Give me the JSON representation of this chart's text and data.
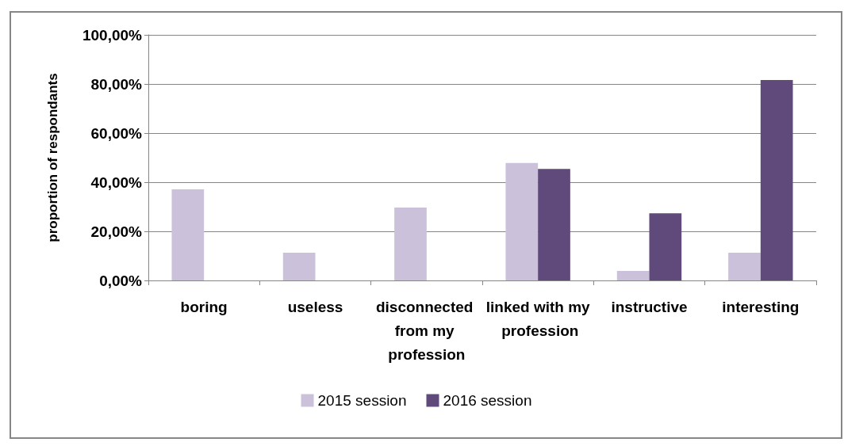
{
  "chart_data": {
    "type": "bar",
    "ylabel": "proportion of respondants",
    "categories": [
      "boring",
      "useless",
      "disconnected from my profession",
      "linked with my profession",
      "instructive",
      "interesting"
    ],
    "series": [
      {
        "name": "2015 session",
        "color": "#ccc1da",
        "values": [
          37.1,
          11.3,
          29.7,
          47.8,
          3.9,
          11.3
        ]
      },
      {
        "name": "2016 session",
        "color": "#604a7b",
        "values": [
          0,
          0,
          0,
          45.4,
          27.3,
          81.6
        ]
      }
    ],
    "ylim": [
      0,
      100
    ],
    "yticks": [
      {
        "value": 0,
        "label": "0,00%"
      },
      {
        "value": 20,
        "label": "20,00%"
      },
      {
        "value": 40,
        "label": "40,00%"
      },
      {
        "value": 60,
        "label": "60,00%"
      },
      {
        "value": 80,
        "label": "80,00%"
      },
      {
        "value": 100,
        "label": "100,00%"
      }
    ],
    "grid": "y",
    "legend": "bottom"
  }
}
